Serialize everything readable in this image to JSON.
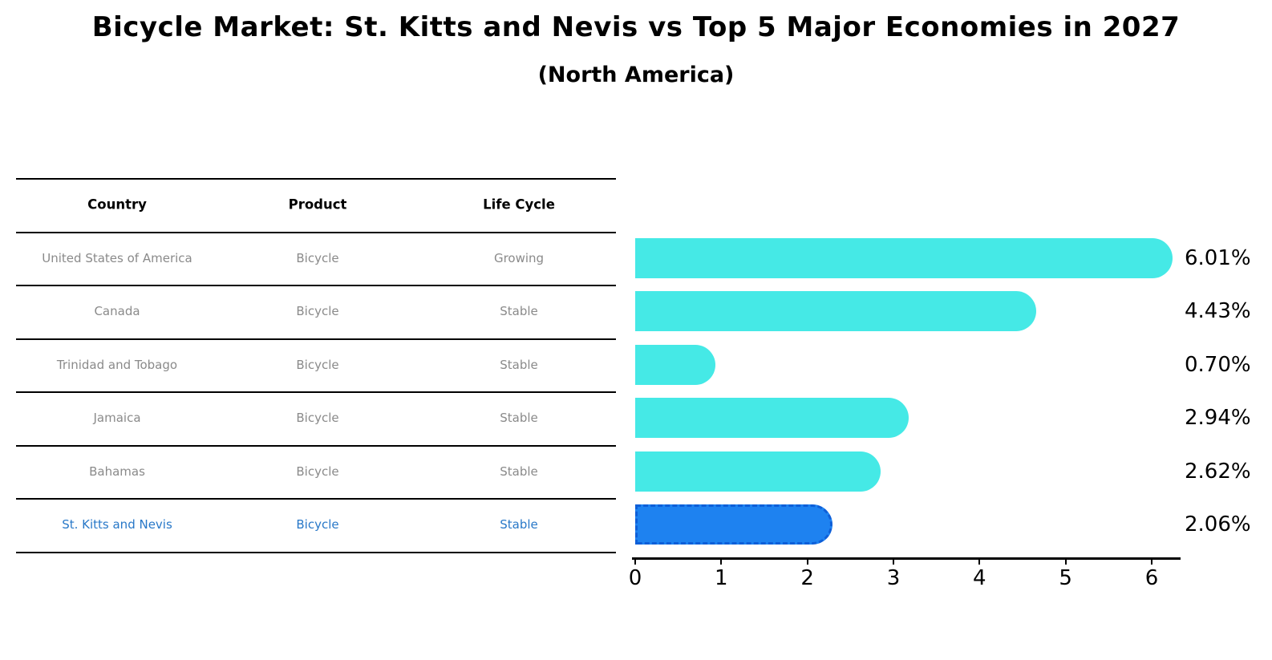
{
  "title": "Bicycle Market: St. Kitts and Nevis vs Top 5 Major Economies in 2027",
  "subtitle": "(North America)",
  "table": {
    "headers": [
      "Country",
      "Product",
      "Life Cycle"
    ],
    "rows": [
      {
        "country": "United States of America",
        "product": "Bicycle",
        "life_cycle": "Growing",
        "highlight": false
      },
      {
        "country": "Canada",
        "product": "Bicycle",
        "life_cycle": "Stable",
        "highlight": false
      },
      {
        "country": "Trinidad and Tobago",
        "product": "Bicycle",
        "life_cycle": "Stable",
        "highlight": false
      },
      {
        "country": "Jamaica",
        "product": "Bicycle",
        "life_cycle": "Stable",
        "highlight": false
      },
      {
        "country": "Bahamas",
        "product": "Bicycle",
        "life_cycle": "Stable",
        "highlight": false
      },
      {
        "country": "St. Kitts and Nevis",
        "product": "Bicycle",
        "life_cycle": "Stable",
        "highlight": true
      }
    ]
  },
  "chart_data": {
    "type": "bar",
    "orientation": "horizontal",
    "title": "Bicycle Market: St. Kitts and Nevis vs Top 5 Major Economies in 2027",
    "subtitle": "(North America)",
    "categories": [
      "United States of America",
      "Canada",
      "Trinidad and Tobago",
      "Jamaica",
      "Bahamas",
      "St. Kitts and Nevis"
    ],
    "values": [
      6.01,
      4.43,
      0.7,
      2.94,
      2.62,
      2.06
    ],
    "value_labels": [
      "6.01%",
      "4.43%",
      "0.70%",
      "2.94%",
      "2.62%",
      "2.06%"
    ],
    "xlabel": "",
    "ylabel": "",
    "xlim": [
      0,
      6.3
    ],
    "xticks": [
      "0",
      "1",
      "2",
      "3",
      "4",
      "5",
      "6"
    ],
    "grid": false,
    "legend": false,
    "highlight_index": 5
  },
  "colors": {
    "bar": "#45e9e6",
    "highlight_bar": "#1e82f0",
    "highlight_border": "#0e5fd8",
    "row_text": "#8a8a8a",
    "highlight_text": "#2878c8",
    "header_text": "#000000",
    "line": "#000000",
    "value_text": "#000000"
  }
}
